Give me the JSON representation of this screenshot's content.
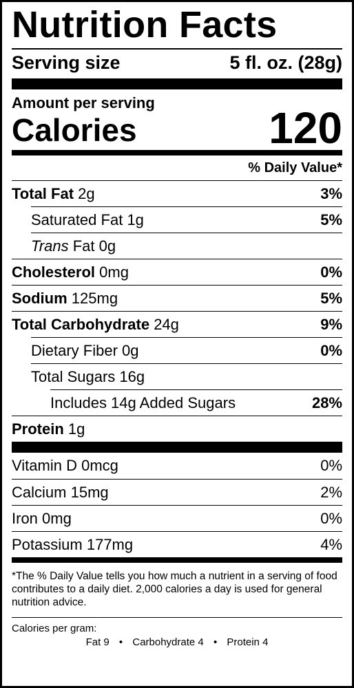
{
  "title": "Nutrition Facts",
  "serving": {
    "label": "Serving size",
    "value": "5 fl. oz. (28g)"
  },
  "amount_per_serving": "Amount per serving",
  "calories": {
    "label": "Calories",
    "value": "120"
  },
  "daily_value_header": "% Daily Value*",
  "nutrients": [
    {
      "name": "Total Fat",
      "amount": "2g",
      "dv": "3%"
    },
    {
      "name": "Saturated Fat",
      "amount": "1g",
      "dv": "5%"
    },
    {
      "name": "Trans",
      "name_rest": "Fat",
      "amount": "0g",
      "dv": ""
    },
    {
      "name": "Cholesterol",
      "amount": "0mg",
      "dv": "0%"
    },
    {
      "name": "Sodium",
      "amount": "125mg",
      "dv": "5%"
    },
    {
      "name": "Total Carbohydrate",
      "amount": "24g",
      "dv": "9%"
    },
    {
      "name": "Dietary Fiber",
      "amount": "0g",
      "dv": "0%"
    },
    {
      "name": "Total Sugars",
      "amount": "16g",
      "dv": ""
    },
    {
      "name": "Includes 14g Added Sugars",
      "amount": "",
      "dv": "28%"
    },
    {
      "name": "Protein",
      "amount": "1g",
      "dv": ""
    }
  ],
  "vitamins": [
    {
      "name": "Vitamin D",
      "amount": "0mcg",
      "dv": "0%"
    },
    {
      "name": "Calcium",
      "amount": "15mg",
      "dv": "2%"
    },
    {
      "name": "Iron",
      "amount": "0mg",
      "dv": "0%"
    },
    {
      "name": "Potassium",
      "amount": "177mg",
      "dv": "4%"
    }
  ],
  "footnote": "*The % Daily Value tells you how much a nutrient in a serving of food contributes to a daily diet. 2,000 calories a day is used for general nutrition advice.",
  "calories_per_gram": {
    "label": "Calories per gram:",
    "fat": "Fat 9",
    "carbohydrate": "Carbohydrate 4",
    "protein": "Protein 4",
    "separator": "•"
  }
}
